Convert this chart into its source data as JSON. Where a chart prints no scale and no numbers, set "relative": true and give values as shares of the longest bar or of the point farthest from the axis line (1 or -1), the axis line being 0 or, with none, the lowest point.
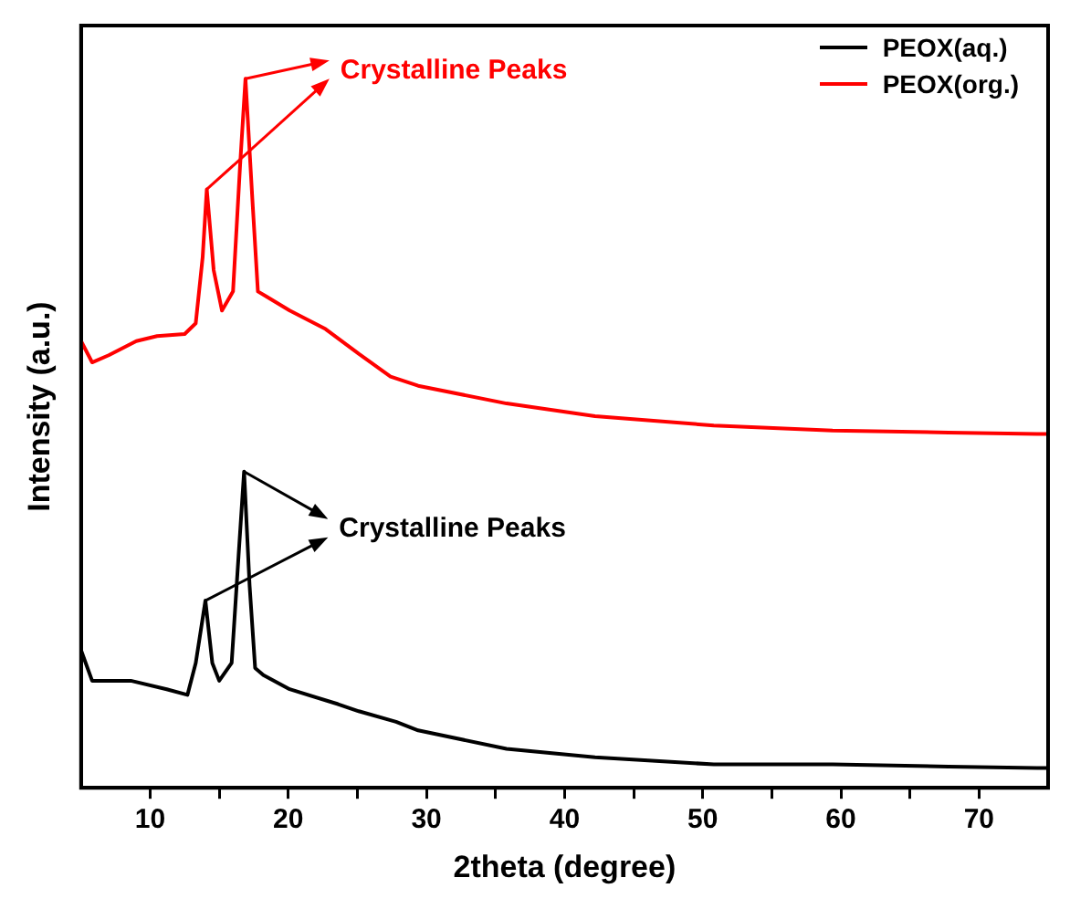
{
  "chart_data": {
    "type": "line",
    "xlabel": "2theta (degree)",
    "ylabel": "Intensity (a.u.)",
    "relative": true,
    "xlim": [
      5,
      75
    ],
    "xticks": [
      10,
      {
        "value": 15,
        "label": null
      },
      20,
      {
        "value": 25,
        "label": null
      },
      30,
      {
        "value": 35,
        "label": null
      },
      40,
      {
        "value": 45,
        "label": null
      },
      50,
      {
        "value": 55,
        "label": null
      },
      60,
      {
        "value": 65,
        "label": null
      },
      70
    ],
    "grid": false,
    "legend": "top right",
    "marker": "none",
    "line_style": "solid",
    "series": [
      {
        "name": "PEOX(aq.)",
        "color": "#000000",
        "x": [
          5,
          5.8,
          8.6,
          11.2,
          12.7,
          13.3,
          14.0,
          14.5,
          15.0,
          15.9,
          16.4,
          16.8,
          17.2,
          17.6,
          18.2,
          20.1,
          23.6,
          25.1,
          27.8,
          29.4,
          35.8,
          42.2,
          50.8,
          59.4,
          67.8,
          74.2,
          75
        ],
        "values": [
          0.194,
          0.151,
          0.151,
          0.139,
          0.131,
          0.176,
          0.264,
          0.176,
          0.151,
          0.176,
          0.327,
          0.446,
          0.285,
          0.169,
          0.159,
          0.139,
          0.118,
          0.108,
          0.093,
          0.081,
          0.055,
          0.043,
          0.033,
          0.033,
          0.03,
          0.028,
          0.028
        ]
      },
      {
        "name": "PEOX(org.)",
        "color": "#ff0000",
        "x": [
          5,
          5.8,
          7,
          9,
          10.5,
          12.5,
          13.3,
          13.8,
          14.1,
          14.6,
          15.2,
          16.0,
          16.5,
          16.9,
          17.4,
          17.8,
          18.4,
          20.1,
          22.7,
          25.1,
          27.4,
          29.4,
          35.8,
          42.2,
          50.8,
          59.4,
          67.8,
          74.2,
          75
        ],
        "values": [
          0.63,
          0.6,
          0.61,
          0.63,
          0.637,
          0.64,
          0.655,
          0.748,
          0.844,
          0.73,
          0.673,
          0.7,
          0.874,
          1.0,
          0.83,
          0.7,
          0.693,
          0.673,
          0.647,
          0.612,
          0.58,
          0.567,
          0.542,
          0.524,
          0.511,
          0.504,
          0.501,
          0.499,
          0.499
        ]
      }
    ],
    "annotations": [
      "Crystalline Peaks",
      "Crystalline Peaks"
    ]
  }
}
